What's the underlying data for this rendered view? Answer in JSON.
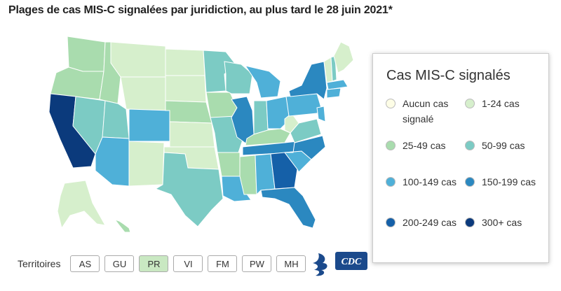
{
  "header": {
    "title": "Plages de cas MIS-C signalées par juridiction, au plus tard le 28 juin 2021*"
  },
  "legend": {
    "title": "Cas MIS-C signalés",
    "items": [
      {
        "label": "Aucun cas signalé",
        "color": "#fdfde6"
      },
      {
        "label": "1-24 cas",
        "color": "#d6efcc"
      },
      {
        "label": "25-49 cas",
        "color": "#a9dcae"
      },
      {
        "label": "50-99 cas",
        "color": "#7ccbc4"
      },
      {
        "label": "100-149 cas",
        "color": "#4fb0d8"
      },
      {
        "label": "150-199 cas",
        "color": "#2b88c0"
      },
      {
        "label": "200-249 cas",
        "color": "#1560a8"
      },
      {
        "label": "300+ cas",
        "color": "#0b3a7c"
      }
    ]
  },
  "territories": {
    "label": "Territoires",
    "buttons": [
      {
        "label": "AS",
        "color": "#ffffff"
      },
      {
        "label": "GU",
        "color": "#ffffff"
      },
      {
        "label": "PR",
        "color": "#c9e8c2"
      },
      {
        "label": "VI",
        "color": "#ffffff"
      },
      {
        "label": "FM",
        "color": "#ffffff"
      },
      {
        "label": "PW",
        "color": "#ffffff"
      },
      {
        "label": "MH",
        "color": "#ffffff"
      }
    ]
  },
  "logos": {
    "cdc": "CDC"
  }
}
